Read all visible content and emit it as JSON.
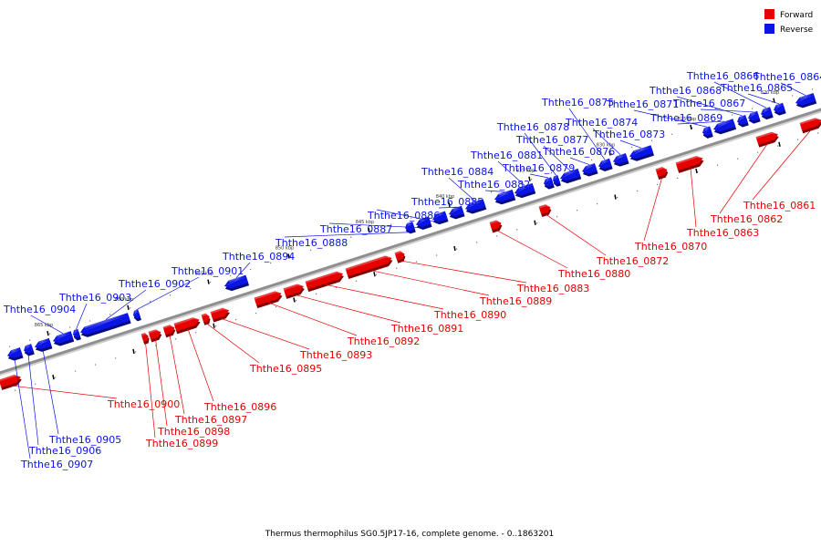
{
  "colors": {
    "forward": "#e60000",
    "reverse": "#0a14e6",
    "backbone": "#8f8f8f"
  },
  "legend": [
    {
      "label": "Forward",
      "color": "#e60000"
    },
    {
      "label": "Reverse",
      "color": "#0a14e6"
    }
  ],
  "ticks": [
    "820 kbp",
    "825 kbp",
    "830 kbp",
    "835 kbp",
    "840 kbp",
    "845 kbp",
    "850 kbp",
    "855 kbp",
    "860 kbp",
    "865 kbp"
  ],
  "genes": [
    {
      "id": "Ththe16_0861",
      "strand": "forward"
    },
    {
      "id": "Ththe16_0862",
      "strand": "forward"
    },
    {
      "id": "Ththe16_0863",
      "strand": "forward"
    },
    {
      "id": "Ththe16_0864",
      "strand": "reverse"
    },
    {
      "id": "Ththe16_0865",
      "strand": "reverse"
    },
    {
      "id": "Ththe16_0866",
      "strand": "reverse"
    },
    {
      "id": "Ththe16_0867",
      "strand": "reverse"
    },
    {
      "id": "Ththe16_0868",
      "strand": "reverse"
    },
    {
      "id": "Ththe16_0869",
      "strand": "reverse"
    },
    {
      "id": "Ththe16_0870",
      "strand": "forward"
    },
    {
      "id": "Ththe16_0871",
      "strand": "reverse"
    },
    {
      "id": "Ththe16_0872",
      "strand": "forward"
    },
    {
      "id": "Ththe16_0873",
      "strand": "reverse"
    },
    {
      "id": "Ththe16_0874",
      "strand": "reverse"
    },
    {
      "id": "Ththe16_0875",
      "strand": "reverse"
    },
    {
      "id": "Ththe16_0876",
      "strand": "reverse"
    },
    {
      "id": "Ththe16_0877",
      "strand": "reverse"
    },
    {
      "id": "Ththe16_0878",
      "strand": "reverse"
    },
    {
      "id": "Ththe16_0879",
      "strand": "reverse"
    },
    {
      "id": "Ththe16_0880",
      "strand": "forward"
    },
    {
      "id": "Ththe16_0881",
      "strand": "reverse"
    },
    {
      "id": "Ththe16_0882",
      "strand": "reverse"
    },
    {
      "id": "Ththe16_0883",
      "strand": "forward"
    },
    {
      "id": "Ththe16_0884",
      "strand": "reverse"
    },
    {
      "id": "Ththe16_0885",
      "strand": "reverse"
    },
    {
      "id": "Ththe16_0886",
      "strand": "reverse"
    },
    {
      "id": "Ththe16_0887",
      "strand": "reverse"
    },
    {
      "id": "Ththe16_0888",
      "strand": "reverse"
    },
    {
      "id": "Ththe16_0889",
      "strand": "forward"
    },
    {
      "id": "Ththe16_0890",
      "strand": "forward"
    },
    {
      "id": "Ththe16_0891",
      "strand": "forward"
    },
    {
      "id": "Ththe16_0892",
      "strand": "forward"
    },
    {
      "id": "Ththe16_0893",
      "strand": "forward"
    },
    {
      "id": "Ththe16_0894",
      "strand": "reverse"
    },
    {
      "id": "Ththe16_0895",
      "strand": "forward"
    },
    {
      "id": "Ththe16_0896",
      "strand": "forward"
    },
    {
      "id": "Ththe16_0897",
      "strand": "forward"
    },
    {
      "id": "Ththe16_0898",
      "strand": "forward"
    },
    {
      "id": "Ththe16_0899",
      "strand": "forward"
    },
    {
      "id": "Ththe16_0900",
      "strand": "forward"
    },
    {
      "id": "Ththe16_0901",
      "strand": "reverse"
    },
    {
      "id": "Ththe16_0902",
      "strand": "reverse"
    },
    {
      "id": "Ththe16_0903",
      "strand": "reverse"
    },
    {
      "id": "Ththe16_0904",
      "strand": "reverse"
    },
    {
      "id": "Ththe16_0905",
      "strand": "reverse"
    },
    {
      "id": "Ththe16_0906",
      "strand": "reverse"
    },
    {
      "id": "Ththe16_0907",
      "strand": "reverse"
    }
  ],
  "caption": "Thermus thermophilus SG0.5JP17-16, complete genome. - 0..1863201"
}
